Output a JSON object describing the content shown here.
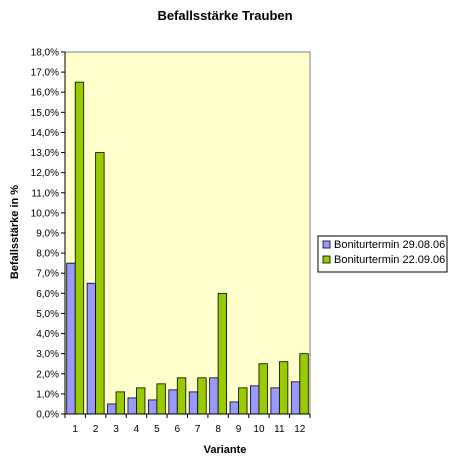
{
  "chart_data": {
    "type": "bar",
    "title": "Befallsstärke Trauben",
    "xlabel": "Variante",
    "ylabel": "Befallsstärke in %",
    "categories": [
      "1",
      "2",
      "3",
      "4",
      "5",
      "6",
      "7",
      "8",
      "9",
      "10",
      "11",
      "12"
    ],
    "ylim": [
      0,
      18
    ],
    "y_ticks": [
      0,
      1,
      2,
      3,
      4,
      5,
      6,
      7,
      8,
      9,
      10,
      11,
      12,
      13,
      14,
      15,
      16,
      17,
      18
    ],
    "y_tick_labels": [
      "0,0%",
      "1,0%",
      "2,0%",
      "3,0%",
      "4,0%",
      "5,0%",
      "6,0%",
      "7,0%",
      "8,0%",
      "9,0%",
      "10,0%",
      "11,0%",
      "12,0%",
      "13,0%",
      "14,0%",
      "15,0%",
      "16,0%",
      "17,0%",
      "18,0%"
    ],
    "grid": false,
    "legend_position": "right",
    "plot_background": "#ffffcc",
    "series": [
      {
        "name": "Boniturtermin 29.08.06",
        "color": "#9999ff",
        "values": [
          7.5,
          6.5,
          0.5,
          0.8,
          0.7,
          1.2,
          1.1,
          1.8,
          0.6,
          1.4,
          1.3,
          1.6
        ]
      },
      {
        "name": "Boniturtermin 22.09.06",
        "color": "#99cc00",
        "values": [
          16.5,
          13.0,
          1.1,
          1.3,
          1.5,
          1.8,
          1.8,
          6.0,
          1.3,
          2.5,
          2.6,
          3.0
        ]
      }
    ]
  }
}
